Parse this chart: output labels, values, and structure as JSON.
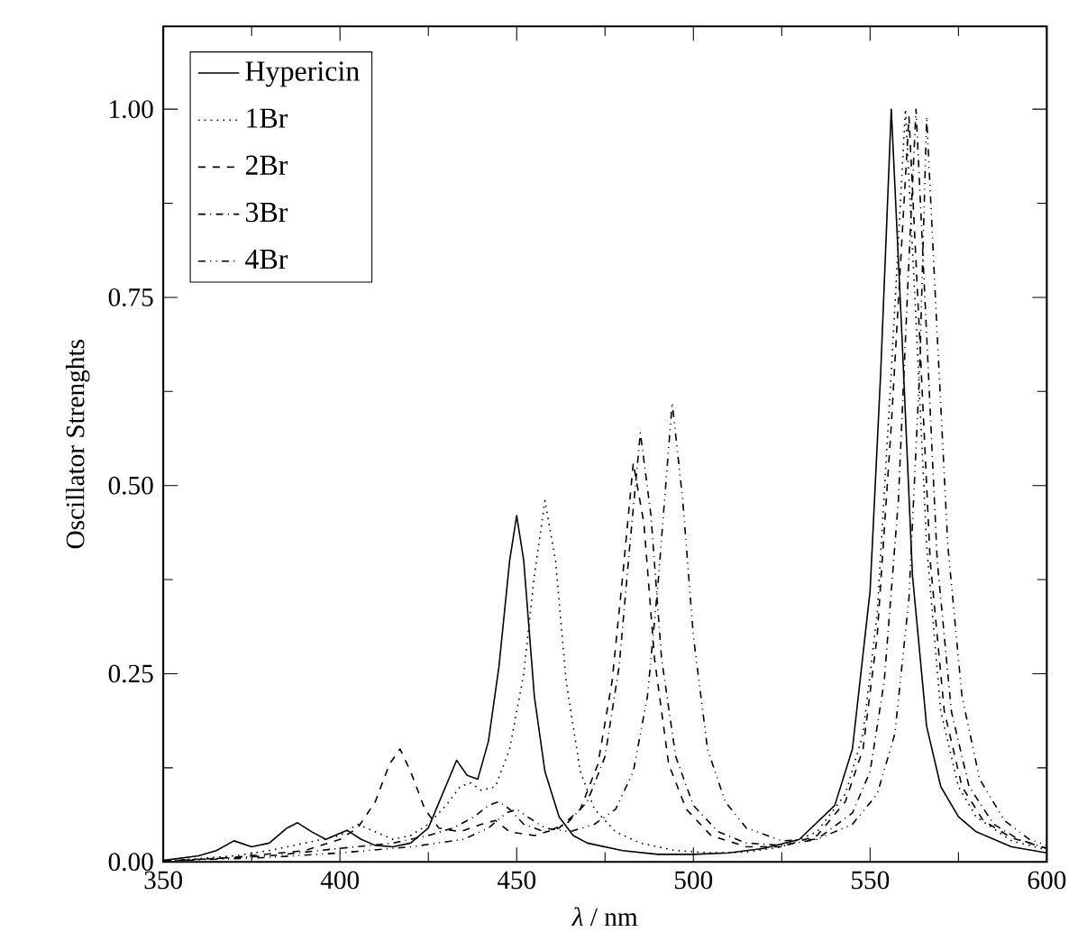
{
  "chart_data": {
    "type": "line",
    "xlabel": "*λ* / nm",
    "ylabel": "Oscillator Strenghts",
    "xlim": [
      350,
      600
    ],
    "xticks": [
      350,
      400,
      450,
      500,
      550,
      600
    ],
    "ylim": [
      0,
      1.11
    ],
    "yticks": [
      {
        "value": 0,
        "label": "0.00"
      },
      {
        "value": 0.25,
        "label": "0.25"
      },
      {
        "value": 0.5,
        "label": "0.50"
      },
      {
        "value": 0.75,
        "label": "0.75"
      },
      {
        "value": 1,
        "label": "1.00"
      }
    ],
    "grid": false,
    "legend": "top left",
    "marker": "none",
    "series": [
      {
        "name": "Hypericin",
        "color": "#000000",
        "line_style": "solid",
        "x": [
          350,
          360,
          365,
          370,
          375,
          380,
          385,
          388,
          392,
          396,
          400,
          402,
          406,
          410,
          415,
          420,
          425,
          429,
          433,
          436,
          439,
          442,
          445,
          448,
          450,
          452,
          455,
          458,
          462,
          466,
          470,
          480,
          490,
          500,
          510,
          520,
          530,
          540,
          545,
          550,
          553,
          556,
          559,
          562,
          566,
          570,
          575,
          580,
          590,
          600
        ],
        "values": [
          0.002,
          0.008,
          0.015,
          0.028,
          0.02,
          0.025,
          0.045,
          0.052,
          0.04,
          0.03,
          0.038,
          0.042,
          0.03,
          0.022,
          0.02,
          0.025,
          0.045,
          0.09,
          0.135,
          0.115,
          0.11,
          0.16,
          0.26,
          0.4,
          0.46,
          0.4,
          0.22,
          0.12,
          0.06,
          0.035,
          0.025,
          0.015,
          0.01,
          0.01,
          0.012,
          0.018,
          0.03,
          0.075,
          0.15,
          0.36,
          0.65,
          1.0,
          0.7,
          0.38,
          0.18,
          0.1,
          0.06,
          0.04,
          0.02,
          0.012
        ]
      },
      {
        "name": "1Br",
        "color": "#000000",
        "line_style": "dotted",
        "x": [
          350,
          370,
          380,
          390,
          400,
          405,
          410,
          415,
          420,
          425,
          430,
          434,
          437,
          440,
          444,
          448,
          452,
          455,
          458,
          461,
          464,
          468,
          472,
          478,
          485,
          495,
          505,
          515,
          525,
          535,
          543,
          548,
          552,
          556,
          560,
          563,
          566,
          570,
          575,
          580,
          590,
          600
        ],
        "values": [
          0.001,
          0.008,
          0.015,
          0.025,
          0.035,
          0.05,
          0.04,
          0.03,
          0.035,
          0.05,
          0.075,
          0.1,
          0.105,
          0.095,
          0.1,
          0.15,
          0.25,
          0.38,
          0.48,
          0.4,
          0.24,
          0.12,
          0.07,
          0.04,
          0.025,
          0.015,
          0.012,
          0.013,
          0.02,
          0.04,
          0.09,
          0.17,
          0.33,
          0.65,
          1.0,
          0.72,
          0.42,
          0.2,
          0.1,
          0.06,
          0.028,
          0.016
        ]
      },
      {
        "name": "2Br",
        "color": "#000000",
        "line_style": "dashed",
        "x": [
          350,
          370,
          390,
          400,
          405,
          410,
          414,
          417,
          420,
          424,
          428,
          434,
          440,
          444,
          448,
          455,
          462,
          468,
          473,
          477,
          480,
          483,
          486,
          489,
          493,
          498,
          505,
          515,
          525,
          535,
          543,
          548,
          552,
          556,
          561,
          564,
          567,
          571,
          576,
          582,
          590,
          600
        ],
        "values": [
          0.001,
          0.006,
          0.015,
          0.03,
          0.045,
          0.08,
          0.13,
          0.15,
          0.12,
          0.07,
          0.045,
          0.04,
          0.05,
          0.055,
          0.04,
          0.035,
          0.045,
          0.07,
          0.13,
          0.24,
          0.38,
          0.53,
          0.45,
          0.27,
          0.13,
          0.07,
          0.035,
          0.02,
          0.02,
          0.035,
          0.08,
          0.15,
          0.3,
          0.58,
          0.99,
          0.7,
          0.4,
          0.2,
          0.1,
          0.055,
          0.032,
          0.018
        ]
      },
      {
        "name": "3Br",
        "color": "#000000",
        "line_style": "dashdot",
        "x": [
          350,
          380,
          400,
          415,
          425,
          432,
          438,
          442,
          445,
          448,
          452,
          458,
          464,
          470,
          475,
          479,
          482,
          485,
          488,
          491,
          495,
          500,
          507,
          515,
          525,
          535,
          545,
          550,
          554,
          558,
          561,
          563,
          566,
          569,
          573,
          578,
          585,
          592,
          600
        ],
        "values": [
          0.001,
          0.008,
          0.018,
          0.025,
          0.035,
          0.045,
          0.06,
          0.075,
          0.08,
          0.07,
          0.05,
          0.04,
          0.05,
          0.08,
          0.14,
          0.26,
          0.42,
          0.57,
          0.46,
          0.27,
          0.14,
          0.075,
          0.04,
          0.025,
          0.022,
          0.03,
          0.065,
          0.12,
          0.24,
          0.48,
          0.8,
          1.0,
          0.7,
          0.4,
          0.2,
          0.1,
          0.05,
          0.03,
          0.018
        ]
      },
      {
        "name": "4Br",
        "color": "#000000",
        "line_style": "dashdotdot",
        "x": [
          350,
          380,
          400,
          420,
          435,
          442,
          447,
          450,
          453,
          458,
          465,
          472,
          478,
          483,
          487,
          490,
          494,
          497,
          500,
          504,
          509,
          515,
          525,
          535,
          545,
          552,
          557,
          561,
          564,
          566,
          569,
          572,
          576,
          581,
          588,
          595,
          600
        ],
        "values": [
          0.001,
          0.006,
          0.012,
          0.02,
          0.03,
          0.045,
          0.065,
          0.07,
          0.06,
          0.045,
          0.04,
          0.05,
          0.07,
          0.12,
          0.22,
          0.37,
          0.61,
          0.48,
          0.3,
          0.15,
          0.08,
          0.045,
          0.028,
          0.03,
          0.05,
          0.09,
          0.17,
          0.35,
          0.65,
          0.99,
          0.7,
          0.42,
          0.22,
          0.11,
          0.055,
          0.03,
          0.022
        ]
      }
    ]
  }
}
